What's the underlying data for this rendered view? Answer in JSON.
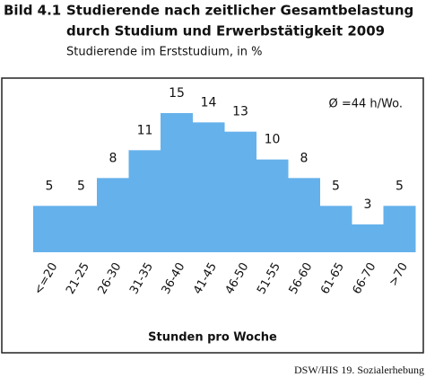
{
  "chart_data": {
    "type": "bar",
    "figure_label": "Bild 4.1",
    "title": [
      "Studierende nach zeitlicher Gesamtbelastung",
      "durch Studium und Erwerbstätigkeit 2009"
    ],
    "subtitle": "Studierende im Erststudium, in %",
    "annotation": "Ø =44 h/Wo.",
    "x_label": "Stunden pro Woche",
    "source": "DSW/HIS 19. Sozialerhebung",
    "categories": [
      "<=20",
      "21-25",
      "26-30",
      "31-35",
      "36-40",
      "41-45",
      "46-50",
      "51-55",
      "56-60",
      "61-65",
      "66-70",
      ">70"
    ],
    "values": [
      5,
      5,
      8,
      11,
      15,
      14,
      13,
      10,
      8,
      5,
      3,
      5
    ],
    "color": "#65b1eb"
  }
}
